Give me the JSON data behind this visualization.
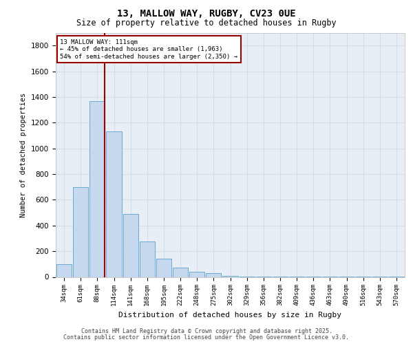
{
  "title_line1": "13, MALLOW WAY, RUGBY, CV23 0UE",
  "title_line2": "Size of property relative to detached houses in Rugby",
  "xlabel": "Distribution of detached houses by size in Rugby",
  "ylabel": "Number of detached properties",
  "categories": [
    "34sqm",
    "61sqm",
    "88sqm",
    "114sqm",
    "141sqm",
    "168sqm",
    "195sqm",
    "222sqm",
    "248sqm",
    "275sqm",
    "302sqm",
    "329sqm",
    "356sqm",
    "382sqm",
    "409sqm",
    "436sqm",
    "463sqm",
    "490sqm",
    "516sqm",
    "543sqm",
    "570sqm"
  ],
  "values": [
    100,
    700,
    1370,
    1130,
    490,
    275,
    140,
    70,
    40,
    30,
    10,
    5,
    5,
    5,
    3,
    2,
    2,
    2,
    1,
    1,
    1
  ],
  "bar_color": "#c5d8ed",
  "bar_edge_color": "#6aaad4",
  "grid_color": "#d8dde8",
  "background_color": "#e8eef6",
  "annotation_line1": "13 MALLOW WAY: 111sqm",
  "annotation_line2": "← 45% of detached houses are smaller (1,963)",
  "annotation_line3": "54% of semi-detached houses are larger (2,350) →",
  "vline_color": "#990000",
  "annotation_box_facecolor": "#ffffff",
  "annotation_box_edgecolor": "#990000",
  "ylim": [
    0,
    1900
  ],
  "yticks": [
    0,
    200,
    400,
    600,
    800,
    1000,
    1200,
    1400,
    1600,
    1800
  ],
  "footer_line1": "Contains HM Land Registry data © Crown copyright and database right 2025.",
  "footer_line2": "Contains public sector information licensed under the Open Government Licence v3.0."
}
